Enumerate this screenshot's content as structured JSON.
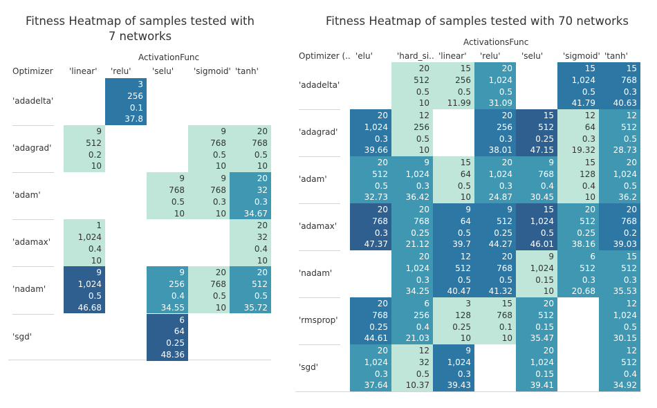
{
  "colors": {
    "level_1": "#bfe6d9",
    "level_2": "#3f97b1",
    "level_3": "#2d77a5",
    "level_4": "#2f5f8f",
    "dark_text": "#ffffff",
    "light_text": "#333333"
  },
  "chart_data": [
    {
      "type": "heatmap",
      "title": "Fitness Heatmap of samples tested with 7 networks",
      "column_axis_label": "ActivationFunc",
      "row_axis_label": "Optimizer",
      "columns": [
        "'linear'",
        "'relu'",
        "'selu'",
        "'sigmoid'",
        "'tanh'"
      ],
      "rows": [
        "'adadelta'",
        "'adagrad'",
        "'adam'",
        "'adamax'",
        "'nadam'",
        "'sgd'"
      ],
      "cells": [
        {
          "row": 0,
          "col": 1,
          "values": [
            "3",
            "256",
            "0.1",
            "37.8"
          ],
          "level": 3
        },
        {
          "row": 1,
          "col": 0,
          "values": [
            "9",
            "512",
            "0.2",
            "10"
          ],
          "level": 1
        },
        {
          "row": 1,
          "col": 3,
          "values": [
            "9",
            "768",
            "0.5",
            "10"
          ],
          "level": 1
        },
        {
          "row": 1,
          "col": 4,
          "values": [
            "20",
            "768",
            "0.5",
            "10"
          ],
          "level": 1
        },
        {
          "row": 2,
          "col": 2,
          "values": [
            "9",
            "768",
            "0.5",
            "10"
          ],
          "level": 1
        },
        {
          "row": 2,
          "col": 3,
          "values": [
            "9",
            "768",
            "0.3",
            "10"
          ],
          "level": 1
        },
        {
          "row": 2,
          "col": 4,
          "values": [
            "20",
            "32",
            "0.3",
            "34.67"
          ],
          "level": 2
        },
        {
          "row": 3,
          "col": 0,
          "values": [
            "1",
            "1,024",
            "0.4",
            "10"
          ],
          "level": 1
        },
        {
          "row": 3,
          "col": 4,
          "values": [
            "20",
            "32",
            "0.4",
            "10"
          ],
          "level": 1
        },
        {
          "row": 4,
          "col": 0,
          "values": [
            "9",
            "1,024",
            "0.5",
            "46.68"
          ],
          "level": 4
        },
        {
          "row": 4,
          "col": 2,
          "values": [
            "9",
            "256",
            "0.4",
            "34.55"
          ],
          "level": 2
        },
        {
          "row": 4,
          "col": 3,
          "values": [
            "20",
            "768",
            "0.5",
            "10"
          ],
          "level": 1
        },
        {
          "row": 4,
          "col": 4,
          "values": [
            "20",
            "512",
            "0.5",
            "35.72"
          ],
          "level": 2
        },
        {
          "row": 5,
          "col": 2,
          "values": [
            "6",
            "64",
            "0.25",
            "48.36"
          ],
          "level": 4
        }
      ]
    },
    {
      "type": "heatmap",
      "title": "Fitness Heatmap of samples tested with 70 networks",
      "column_axis_label": "ActivationsFunc",
      "row_axis_label": "Optimizer (..",
      "columns": [
        "'elu'",
        "'hard_si..",
        "'linear'",
        "'relu'",
        "'selu'",
        "'sigmoid'",
        "'tanh'"
      ],
      "rows": [
        "'adadelta'",
        "'adagrad'",
        "'adam'",
        "'adamax'",
        "'nadam'",
        "'rmsprop'",
        "'sgd'"
      ],
      "cells": [
        {
          "row": 0,
          "col": 1,
          "values": [
            "20",
            "512",
            "0.5",
            "10"
          ],
          "level": 1
        },
        {
          "row": 0,
          "col": 2,
          "values": [
            "15",
            "256",
            "0.5",
            "11.99"
          ],
          "level": 1
        },
        {
          "row": 0,
          "col": 3,
          "values": [
            "20",
            "1,024",
            "0.5",
            "31.09"
          ],
          "level": 2
        },
        {
          "row": 0,
          "col": 5,
          "values": [
            "15",
            "1,024",
            "0.5",
            "41.79"
          ],
          "level": 3
        },
        {
          "row": 0,
          "col": 6,
          "values": [
            "15",
            "768",
            "0.3",
            "40.63"
          ],
          "level": 3
        },
        {
          "row": 1,
          "col": 0,
          "values": [
            "20",
            "1,024",
            "0.3",
            "39.66"
          ],
          "level": 3
        },
        {
          "row": 1,
          "col": 1,
          "values": [
            "12",
            "256",
            "0.5",
            "10"
          ],
          "level": 1
        },
        {
          "row": 1,
          "col": 3,
          "values": [
            "20",
            "256",
            "0.3",
            "38.01"
          ],
          "level": 3
        },
        {
          "row": 1,
          "col": 4,
          "values": [
            "15",
            "512",
            "0.25",
            "47.15"
          ],
          "level": 4
        },
        {
          "row": 1,
          "col": 5,
          "values": [
            "12",
            "64",
            "0.3",
            "19.32"
          ],
          "level": 1
        },
        {
          "row": 1,
          "col": 6,
          "values": [
            "12",
            "512",
            "0.5",
            "28.73"
          ],
          "level": 2
        },
        {
          "row": 2,
          "col": 0,
          "values": [
            "20",
            "512",
            "0.5",
            "32.73"
          ],
          "level": 2
        },
        {
          "row": 2,
          "col": 1,
          "values": [
            "9",
            "1,024",
            "0.3",
            "36.42"
          ],
          "level": 2
        },
        {
          "row": 2,
          "col": 2,
          "values": [
            "15",
            "64",
            "0.5",
            "10"
          ],
          "level": 1
        },
        {
          "row": 2,
          "col": 3,
          "values": [
            "20",
            "1,024",
            "0.3",
            "24.87"
          ],
          "level": 2
        },
        {
          "row": 2,
          "col": 4,
          "values": [
            "9",
            "768",
            "0.4",
            "30.45"
          ],
          "level": 2
        },
        {
          "row": 2,
          "col": 5,
          "values": [
            "15",
            "128",
            "0.4",
            "10"
          ],
          "level": 1
        },
        {
          "row": 2,
          "col": 6,
          "values": [
            "20",
            "1,024",
            "0.5",
            "36.2"
          ],
          "level": 2
        },
        {
          "row": 3,
          "col": 0,
          "values": [
            "20",
            "768",
            "0.3",
            "47.37"
          ],
          "level": 4
        },
        {
          "row": 3,
          "col": 1,
          "values": [
            "20",
            "768",
            "0.25",
            "21.12"
          ],
          "level": 2
        },
        {
          "row": 3,
          "col": 2,
          "values": [
            "9",
            "64",
            "0.5",
            "39.7"
          ],
          "level": 3
        },
        {
          "row": 3,
          "col": 3,
          "values": [
            "9",
            "512",
            "0.25",
            "44.27"
          ],
          "level": 3
        },
        {
          "row": 3,
          "col": 4,
          "values": [
            "15",
            "1,024",
            "0.5",
            "46.01"
          ],
          "level": 4
        },
        {
          "row": 3,
          "col": 5,
          "values": [
            "20",
            "512",
            "0.25",
            "38.16"
          ],
          "level": 2
        },
        {
          "row": 3,
          "col": 6,
          "values": [
            "20",
            "768",
            "0.2",
            "39.03"
          ],
          "level": 3
        },
        {
          "row": 4,
          "col": 1,
          "values": [
            "20",
            "1,024",
            "0.3",
            "34.25"
          ],
          "level": 2
        },
        {
          "row": 4,
          "col": 2,
          "values": [
            "12",
            "512",
            "0.5",
            "40.47"
          ],
          "level": 3
        },
        {
          "row": 4,
          "col": 3,
          "values": [
            "20",
            "768",
            "0.5",
            "41.32"
          ],
          "level": 3
        },
        {
          "row": 4,
          "col": 4,
          "values": [
            "9",
            "1,024",
            "0.15",
            "10"
          ],
          "level": 1
        },
        {
          "row": 4,
          "col": 5,
          "values": [
            "6",
            "512",
            "0.3",
            "20.68"
          ],
          "level": 2
        },
        {
          "row": 4,
          "col": 6,
          "values": [
            "15",
            "512",
            "0.3",
            "35.53"
          ],
          "level": 2
        },
        {
          "row": 5,
          "col": 0,
          "values": [
            "20",
            "768",
            "0.25",
            "44.61"
          ],
          "level": 3
        },
        {
          "row": 5,
          "col": 1,
          "values": [
            "6",
            "256",
            "0.4",
            "21.03"
          ],
          "level": 2
        },
        {
          "row": 5,
          "col": 2,
          "values": [
            "3",
            "128",
            "0.25",
            "10"
          ],
          "level": 1
        },
        {
          "row": 5,
          "col": 3,
          "values": [
            "15",
            "768",
            "0.1",
            "10"
          ],
          "level": 1
        },
        {
          "row": 5,
          "col": 4,
          "values": [
            "20",
            "512",
            "0.15",
            "35.47"
          ],
          "level": 2
        },
        {
          "row": 5,
          "col": 6,
          "values": [
            "12",
            "1,024",
            "0.5",
            "30.15"
          ],
          "level": 2
        },
        {
          "row": 6,
          "col": 0,
          "values": [
            "20",
            "1,024",
            "0.3",
            "37.64"
          ],
          "level": 2
        },
        {
          "row": 6,
          "col": 1,
          "values": [
            "12",
            "32",
            "0.5",
            "10.37"
          ],
          "level": 1
        },
        {
          "row": 6,
          "col": 2,
          "values": [
            "9",
            "1,024",
            "0.3",
            "39.43"
          ],
          "level": 3
        },
        {
          "row": 6,
          "col": 4,
          "values": [
            "20",
            "1,024",
            "0.15",
            "39.41"
          ],
          "level": 2
        },
        {
          "row": 6,
          "col": 6,
          "values": [
            "12",
            "512",
            "0.4",
            "34.92"
          ],
          "level": 2
        }
      ]
    }
  ]
}
